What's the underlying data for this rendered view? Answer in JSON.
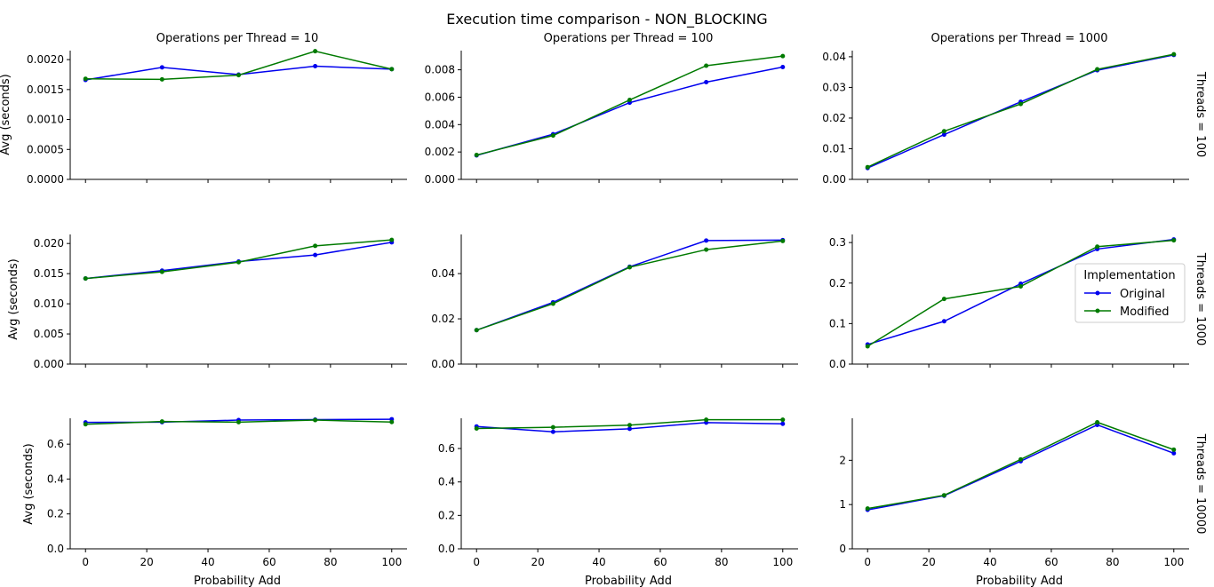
{
  "chart_data": {
    "type": "line",
    "title": "Execution time comparison - NON_BLOCKING",
    "xlabel": "Probability Add",
    "ylabel": "Avg (seconds)",
    "x": [
      0,
      25,
      50,
      75,
      100
    ],
    "x_ticks": [
      "0",
      "20",
      "40",
      "60",
      "80",
      "100"
    ],
    "x_tick_values": [
      0,
      20,
      40,
      60,
      80,
      100
    ],
    "xlim": [
      -5,
      105
    ],
    "col_titles": [
      "Operations per Thread = 10",
      "Operations per Thread = 100",
      "Operations per Thread = 1000"
    ],
    "row_titles": [
      "Threads = 100",
      "Threads = 1000",
      "Threads = 10000"
    ],
    "legend": {
      "title": "Implementation",
      "placement": "right-center",
      "entries": [
        "Original",
        "Modified"
      ]
    },
    "colors": {
      "Original": "#0000ee",
      "Modified": "#007a00"
    },
    "grid": false,
    "panels": [
      {
        "row": 0,
        "col": 0,
        "ylim": [
          0,
          0.00215
        ],
        "y_ticks": [
          "0.0000",
          "0.0005",
          "0.0010",
          "0.0015",
          "0.0020"
        ],
        "y_tick_values": [
          0,
          0.0005,
          0.001,
          0.0015,
          0.002
        ],
        "series": [
          {
            "name": "Original",
            "values": [
              0.00166,
              0.00187,
              0.00175,
              0.00189,
              0.00184
            ]
          },
          {
            "name": "Modified",
            "values": [
              0.00168,
              0.00167,
              0.00174,
              0.00214,
              0.00184
            ]
          }
        ]
      },
      {
        "row": 0,
        "col": 1,
        "ylim": [
          0,
          0.0094
        ],
        "y_ticks": [
          "0.000",
          "0.002",
          "0.004",
          "0.006",
          "0.008"
        ],
        "y_tick_values": [
          0,
          0.002,
          0.004,
          0.006,
          0.008
        ],
        "series": [
          {
            "name": "Original",
            "values": [
              0.00175,
              0.0033,
              0.0056,
              0.0071,
              0.0082
            ]
          },
          {
            "name": "Modified",
            "values": [
              0.00178,
              0.0032,
              0.0058,
              0.0083,
              0.009
            ]
          }
        ]
      },
      {
        "row": 0,
        "col": 2,
        "ylim": [
          0,
          0.042
        ],
        "y_ticks": [
          "0.00",
          "0.01",
          "0.02",
          "0.03",
          "0.04"
        ],
        "y_tick_values": [
          0,
          0.01,
          0.02,
          0.03,
          0.04
        ],
        "series": [
          {
            "name": "Original",
            "values": [
              0.0037,
              0.0146,
              0.0253,
              0.0356,
              0.0406
            ]
          },
          {
            "name": "Modified",
            "values": [
              0.004,
              0.0157,
              0.0246,
              0.0359,
              0.0408
            ]
          }
        ]
      },
      {
        "row": 1,
        "col": 0,
        "ylim": [
          0,
          0.0215
        ],
        "y_ticks": [
          "0.000",
          "0.005",
          "0.010",
          "0.015",
          "0.020"
        ],
        "y_tick_values": [
          0,
          0.005,
          0.01,
          0.015,
          0.02
        ],
        "series": [
          {
            "name": "Original",
            "values": [
              0.0142,
              0.0155,
              0.017,
              0.0181,
              0.0202
            ]
          },
          {
            "name": "Modified",
            "values": [
              0.0142,
              0.0153,
              0.0169,
              0.0196,
              0.0206
            ]
          }
        ]
      },
      {
        "row": 1,
        "col": 1,
        "ylim": [
          0,
          0.0573
        ],
        "y_ticks": [
          "0.00",
          "0.02",
          "0.04"
        ],
        "y_tick_values": [
          0,
          0.02,
          0.04
        ],
        "series": [
          {
            "name": "Original",
            "values": [
              0.015,
              0.0273,
              0.043,
              0.0546,
              0.0548
            ]
          },
          {
            "name": "Modified",
            "values": [
              0.015,
              0.0267,
              0.0428,
              0.0506,
              0.0544
            ]
          }
        ]
      },
      {
        "row": 1,
        "col": 2,
        "ylim": [
          0,
          0.32
        ],
        "y_ticks": [
          "0.0",
          "0.1",
          "0.2",
          "0.3"
        ],
        "y_tick_values": [
          0,
          0.1,
          0.2,
          0.3
        ],
        "series": [
          {
            "name": "Original",
            "values": [
              0.0484,
              0.1057,
              0.1983,
              0.284,
              0.3077
            ]
          },
          {
            "name": "Modified",
            "values": [
              0.0439,
              0.1608,
              0.1917,
              0.2899,
              0.3055
            ]
          }
        ]
      },
      {
        "row": 2,
        "col": 0,
        "ylim": [
          0,
          0.7485
        ],
        "y_ticks": [
          "0.0",
          "0.2",
          "0.4",
          "0.6"
        ],
        "y_tick_values": [
          0,
          0.2,
          0.4,
          0.6
        ],
        "series": [
          {
            "name": "Original",
            "values": [
              0.725,
              0.726,
              0.738,
              0.741,
              0.743
            ]
          },
          {
            "name": "Modified",
            "values": [
              0.714,
              0.73,
              0.726,
              0.738,
              0.727
            ]
          }
        ]
      },
      {
        "row": 2,
        "col": 1,
        "ylim": [
          0,
          0.7809
        ],
        "y_ticks": [
          "0.0",
          "0.2",
          "0.4",
          "0.6"
        ],
        "y_tick_values": [
          0,
          0.2,
          0.4,
          0.6
        ],
        "series": [
          {
            "name": "Original",
            "values": [
              0.732,
              0.7,
              0.718,
              0.755,
              0.748
            ]
          },
          {
            "name": "Modified",
            "values": [
              0.72,
              0.727,
              0.74,
              0.772,
              0.772
            ]
          }
        ]
      },
      {
        "row": 2,
        "col": 2,
        "ylim": [
          0,
          2.95
        ],
        "y_ticks": [
          "0",
          "1",
          "2"
        ],
        "y_tick_values": [
          0,
          1,
          2
        ],
        "series": [
          {
            "name": "Original",
            "values": [
              0.88,
              1.2,
              1.98,
              2.8,
              2.16
            ]
          },
          {
            "name": "Modified",
            "values": [
              0.91,
              1.21,
              2.02,
              2.86,
              2.24
            ]
          }
        ]
      }
    ]
  }
}
